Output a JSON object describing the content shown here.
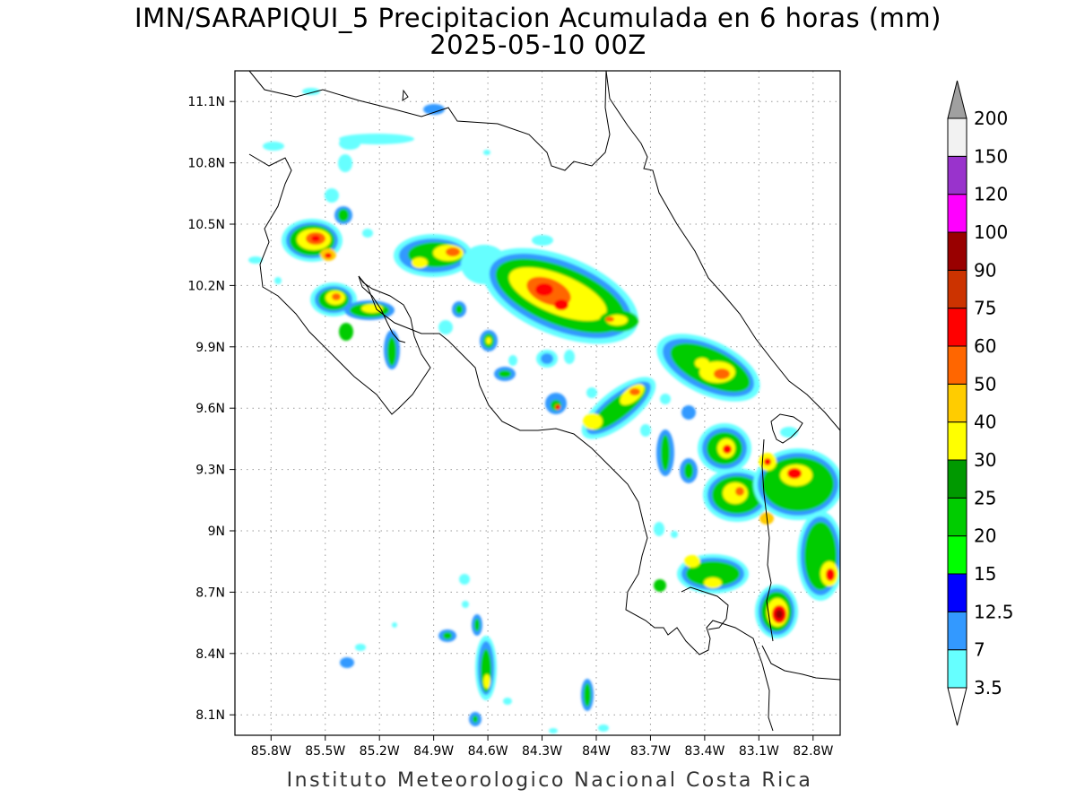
{
  "title": {
    "line1": "IMN/SARAPIQUI_5 Precipitacion Acumulada en 6 horas (mm)",
    "line2": "2025-05-10 00Z"
  },
  "footer": "Instituto Meteorologico Nacional Costa Rica",
  "map": {
    "lon_range": [
      -86.0,
      -82.65
    ],
    "lat_range": [
      8.0,
      11.25
    ],
    "lon_ticks": [
      "85.8W",
      "85.5W",
      "85.2W",
      "84.9W",
      "84.6W",
      "84.3W",
      "84W",
      "83.7W",
      "83.4W",
      "83.1W",
      "82.8W"
    ],
    "lat_ticks": [
      "8.1N",
      "8.4N",
      "8.7N",
      "9N",
      "9.3N",
      "9.6N",
      "9.9N",
      "10.2N",
      "10.5N",
      "10.8N",
      "11.1N"
    ],
    "grid": true
  },
  "colorbar": {
    "labels": [
      "3.5",
      "7",
      "12.5",
      "15",
      "20",
      "25",
      "30",
      "40",
      "50",
      "60",
      "75",
      "90",
      "100",
      "120",
      "150",
      "200"
    ],
    "colors": [
      "#66ffff",
      "#3399ff",
      "#0000ff",
      "#00ff00",
      "#00cc00",
      "#009900",
      "#ffff00",
      "#ffcc00",
      "#ff6600",
      "#ff0000",
      "#cc3300",
      "#990000",
      "#ff00ff",
      "#9933cc",
      "#f2f2f2"
    ],
    "under_color": "#ffffff",
    "over_color": "#a0a0a0"
  }
}
